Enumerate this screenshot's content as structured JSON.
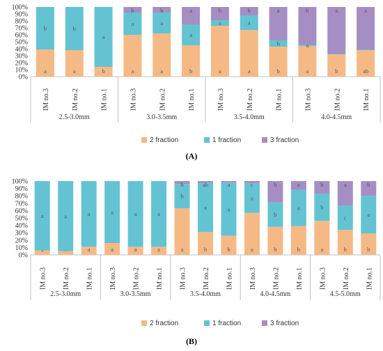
{
  "chart_data": [
    {
      "type": "bar",
      "stacked": true,
      "panel": "A",
      "ylim": [
        0,
        100
      ],
      "yticks": [
        "0%",
        "10%",
        "20%",
        "30%",
        "40%",
        "50%",
        "60%",
        "70%",
        "80%",
        "90%",
        "100%"
      ],
      "colors": {
        "2 fraction": "#f5b985",
        "1 fraction": "#63c3d3",
        "3 fraction": "#a48ec4"
      },
      "groups": [
        {
          "label": "2.5-3.0mm",
          "bars": [
            {
              "label": "IM no.3",
              "s2": 39,
              "s1": 61,
              "s3": 0,
              "l2": "a",
              "l1": "b",
              "l3": ""
            },
            {
              "label": "IM no.2",
              "s2": 38,
              "s1": 62,
              "s3": 0,
              "l2": "a",
              "l1": "b",
              "l3": ""
            },
            {
              "label": "IM no.1",
              "s2": 14,
              "s1": 86,
              "s3": 0,
              "l2": "b",
              "l1": "a",
              "l3": ""
            }
          ]
        },
        {
          "label": "3.0-3.5mm",
          "bars": [
            {
              "label": "IM no.3",
              "s2": 60,
              "s1": 32,
              "s3": 8,
              "l2": "a",
              "l1": "a",
              "l3": "b"
            },
            {
              "label": "IM no.2",
              "s2": 62,
              "s1": 30,
              "s3": 8,
              "l2": "a",
              "l1": "a",
              "l3": "b"
            },
            {
              "label": "IM no.1",
              "s2": 45,
              "s1": 30,
              "s3": 25,
              "l2": "b",
              "l1": "a",
              "l3": "a"
            }
          ]
        },
        {
          "label": "3.5-4.0mm",
          "bars": [
            {
              "label": "IM no.3",
              "s2": 73,
              "s1": 8,
              "s3": 19,
              "l2": "a",
              "l1": "a",
              "l3": "b"
            },
            {
              "label": "IM no.2",
              "s2": 67,
              "s1": 21,
              "s3": 12,
              "l2": "a",
              "l1": "a",
              "l3": "b"
            },
            {
              "label": "IM no.1",
              "s2": 43,
              "s1": 9,
              "s3": 48,
              "l2": "b",
              "l1": "b",
              "l3": "a"
            }
          ]
        },
        {
          "label": "4.0-4.5mm",
          "bars": [
            {
              "label": "IM no.3",
              "s2": 44,
              "s1": 2,
              "s3": 54,
              "l2": "a",
              "l1": "a",
              "l3": "b"
            },
            {
              "label": "IM no.2",
              "s2": 32,
              "s1": 1,
              "s3": 67,
              "l2": "b",
              "l1": "",
              "l3": "a"
            },
            {
              "label": "IM no.1",
              "s2": 38,
              "s1": 1,
              "s3": 61,
              "l2": "ab",
              "l1": "",
              "l3": "a"
            }
          ]
        }
      ],
      "legend": [
        "2 fraction",
        "1 fraction",
        "3 fraction"
      ],
      "caption": "(A)"
    },
    {
      "type": "bar",
      "stacked": true,
      "panel": "B",
      "ylim": [
        0,
        100
      ],
      "yticks": [
        "0%",
        "10%",
        "20%",
        "30%",
        "40%",
        "50%",
        "60%",
        "70%",
        "80%",
        "90%",
        "100%"
      ],
      "colors": {
        "2 fraction": "#f5b985",
        "1 fraction": "#63c3d3",
        "3 fraction": "#a48ec4"
      },
      "groups": [
        {
          "label": "2.5-3.0mm",
          "bars": [
            {
              "label": "IM no.3",
              "s2": 6,
              "s1": 94,
              "s3": 0,
              "l2": "a",
              "l1": "a",
              "l3": ""
            },
            {
              "label": "IM no.2",
              "s2": 5,
              "s1": 95,
              "s3": 0,
              "l2": "a",
              "l1": "a",
              "l3": ""
            },
            {
              "label": "IM no.1",
              "s2": 11,
              "s1": 89,
              "s3": 0,
              "l2": "a",
              "l1": "a",
              "l3": ""
            }
          ]
        },
        {
          "label": "3.0-3.5mm",
          "bars": [
            {
              "label": "IM no.3",
              "s2": 16,
              "s1": 84,
              "s3": 0,
              "l2": "a",
              "l1": "a",
              "l3": ""
            },
            {
              "label": "IM no.2",
              "s2": 11,
              "s1": 89,
              "s3": 0,
              "l2": "a",
              "l1": "a",
              "l3": ""
            },
            {
              "label": "IM no.1",
              "s2": 11,
              "s1": 89,
              "s3": 0,
              "l2": "a",
              "l1": "a",
              "l3": ""
            }
          ]
        },
        {
          "label": "3.5-4.0mm",
          "bars": [
            {
              "label": "IM no.3",
              "s2": 63,
              "s1": 33,
              "s3": 4,
              "l2": "a",
              "l1": "b",
              "l3": "b"
            },
            {
              "label": "IM no.2",
              "s2": 31,
              "s1": 66,
              "s3": 3,
              "l2": "b",
              "l1": "a",
              "l3": "ab"
            },
            {
              "label": "IM no.1",
              "s2": 26,
              "s1": 72,
              "s3": 2,
              "l2": "b",
              "l1": "a",
              "l3": "a"
            }
          ]
        },
        {
          "label": "4.0-4.5mm",
          "bars": [
            {
              "label": "IM no.3",
              "s2": 57,
              "s1": 40,
              "s3": 3,
              "l2": "a",
              "l1": "a",
              "l3": "c"
            },
            {
              "label": "IM no.2",
              "s2": 38,
              "s1": 33,
              "s3": 29,
              "l2": "b",
              "l1": "b",
              "l3": "b"
            },
            {
              "label": "IM no.1",
              "s2": 39,
              "s1": 49,
              "s3": 12,
              "l2": "b",
              "l1": "a",
              "l3": "a"
            }
          ]
        },
        {
          "label": "4.5-5.0mm",
          "bars": [
            {
              "label": "IM no.3",
              "s2": 46,
              "s1": 37,
              "s3": 17,
              "l2": "a",
              "l1": "b",
              "l3": "b"
            },
            {
              "label": "IM no.2",
              "s2": 34,
              "s1": 33,
              "s3": 33,
              "l2": "b",
              "l1": "c",
              "l3": "a"
            },
            {
              "label": "IM no.1",
              "s2": 29,
              "s1": 51,
              "s3": 20,
              "l2": "b",
              "l1": "a",
              "l3": "b"
            }
          ]
        }
      ],
      "legend": [
        "2 fraction",
        "1 fraction",
        "3 fraction"
      ],
      "caption": "(B)"
    }
  ]
}
